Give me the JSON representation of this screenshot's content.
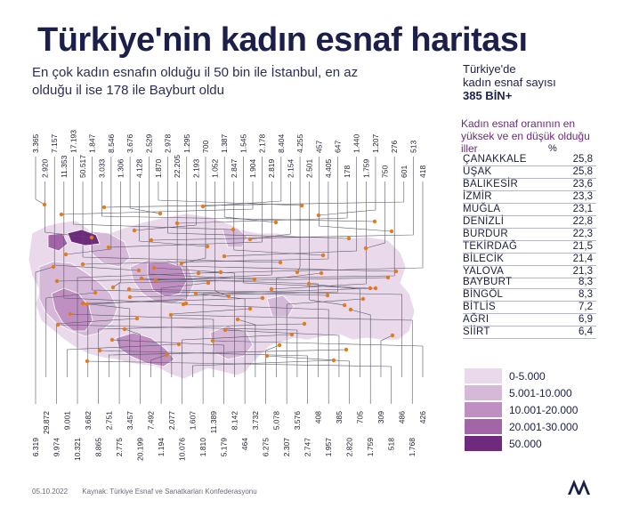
{
  "title": "Türkiye'nin kadın esnaf haritası",
  "subtitle": "En çok kadın esnafın olduğu il 50 bin ile İstanbul, en az olduğu il ise 178 ile Bayburt oldu",
  "side": {
    "line1": "Türkiye'de",
    "line2": "kadın esnaf sayısı",
    "line3": "385 BİN+"
  },
  "rank_heading": "Kadın esnaf oranının en yüksek ve en düşük olduğu iller",
  "pct_symbol": "%",
  "top_provinces": [
    {
      "name": "ÇANAKKALE",
      "value": "25,8"
    },
    {
      "name": "UŞAK",
      "value": "25,8"
    },
    {
      "name": "BALIKESİR",
      "value": "23,6"
    },
    {
      "name": "İZMİR",
      "value": "23,3"
    },
    {
      "name": "MUĞLA",
      "value": "23,1"
    },
    {
      "name": "DENİZLİ",
      "value": "22,8"
    },
    {
      "name": "BURDUR",
      "value": "22,3"
    },
    {
      "name": "TEKİRDAĞ",
      "value": "21,5"
    },
    {
      "name": "BİLECİK",
      "value": "21,4"
    },
    {
      "name": "YALOVA",
      "value": "21,3"
    }
  ],
  "bottom_provinces": [
    {
      "name": "BAYBURT",
      "value": "8,3"
    },
    {
      "name": "BİNGÖL",
      "value": "8,3"
    },
    {
      "name": "BİTLİS",
      "value": "7,2"
    },
    {
      "name": "AĞRI",
      "value": "6,9"
    },
    {
      "name": "SİİRT",
      "value": "6,4"
    }
  ],
  "legend": [
    {
      "label": "0-5.000",
      "color": "#ead9ea"
    },
    {
      "label": "5.001-10.000",
      "color": "#d6b9d8"
    },
    {
      "label": "10.001-20.000",
      "color": "#bf8fc2"
    },
    {
      "label": "20.001-30.000",
      "color": "#a266a8"
    },
    {
      "label": "50.000",
      "color": "#6e2a7d"
    }
  ],
  "top_callouts": [
    "3.365",
    "2.920",
    "7.157",
    "11.353",
    "17.193",
    "50.517",
    "1.847",
    "3.033",
    "8.546",
    "1.306",
    "3.676",
    "4.128",
    "2.529",
    "1.870",
    "2.978",
    "22.205",
    "1.295",
    "2.193",
    "700",
    "1.052",
    "1.387",
    "2.847",
    "1.545",
    "1.904",
    "2.178",
    "2.819",
    "8.404",
    "2.154",
    "4.255",
    "2.501",
    "457",
    "4.405",
    "647",
    "178",
    "1.440",
    "1.759",
    "1.207",
    "750",
    "276",
    "601",
    "513",
    "418"
  ],
  "bottom_callouts": [
    "6.319",
    "29.872",
    "9.974",
    "9.001",
    "10.321",
    "3.682",
    "8.865",
    "2.751",
    "2.775",
    "3.457",
    "20.199",
    "7.492",
    "1.194",
    "2.077",
    "10.076",
    "1.607",
    "1.810",
    "11.389",
    "5.179",
    "8.142",
    "464",
    "3.732",
    "6.275",
    "5.078",
    "2.307",
    "3.576",
    "2.747",
    "408",
    "1.957",
    "385",
    "2.820",
    "705",
    "1.759",
    "309",
    "518",
    "486",
    "1.768",
    "426"
  ],
  "footer": {
    "date": "05.10.2022",
    "source": "Kaynak: Türkiye Esnaf ve Sanatkarları Konfederasyonu"
  },
  "colors": {
    "title": "#1b1f4a",
    "accent": "#e07b1f",
    "heading_purple": "#6a2b7a"
  },
  "map_icon": "turkey-province-map",
  "logo_icon": "aa-logo"
}
